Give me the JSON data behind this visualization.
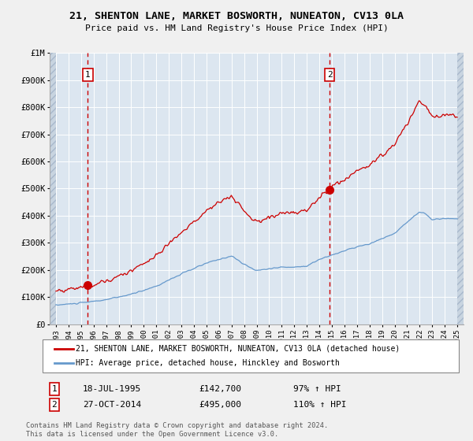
{
  "title": "21, SHENTON LANE, MARKET BOSWORTH, NUNEATON, CV13 0LA",
  "subtitle": "Price paid vs. HM Land Registry's House Price Index (HPI)",
  "legend_line1": "21, SHENTON LANE, MARKET BOSWORTH, NUNEATON, CV13 0LA (detached house)",
  "legend_line2": "HPI: Average price, detached house, Hinckley and Bosworth",
  "footnote": "Contains HM Land Registry data © Crown copyright and database right 2024.\nThis data is licensed under the Open Government Licence v3.0.",
  "sale1_date": "18-JUL-1995",
  "sale1_price": "£142,700",
  "sale1_hpi": "97% ↑ HPI",
  "sale1_x": 1995.54,
  "sale1_y": 142700,
  "sale2_date": "27-OCT-2014",
  "sale2_price": "£495,000",
  "sale2_hpi": "110% ↑ HPI",
  "sale2_x": 2014.82,
  "sale2_y": 495000,
  "red_line_color": "#cc0000",
  "blue_line_color": "#6699cc",
  "bg_color": "#dce6f0",
  "hatch_facecolor": "#c8d4e0",
  "hatch_edgecolor": "#a8b8cc",
  "grid_color": "#ffffff",
  "sale_marker_color": "#cc0000",
  "dashed_line_color": "#cc0000",
  "fig_bg_color": "#f0f0f0",
  "ylim": [
    0,
    1000000
  ],
  "yticks": [
    0,
    100000,
    200000,
    300000,
    400000,
    500000,
    600000,
    700000,
    800000,
    900000,
    1000000
  ],
  "ytick_labels": [
    "£0",
    "£100K",
    "£200K",
    "£300K",
    "£400K",
    "£500K",
    "£600K",
    "£700K",
    "£800K",
    "£900K",
    "£1M"
  ],
  "xmin": 1992.5,
  "xmax": 2025.5,
  "xticks": [
    1993,
    1994,
    1995,
    1996,
    1997,
    1998,
    1999,
    2000,
    2001,
    2002,
    2003,
    2004,
    2005,
    2006,
    2007,
    2008,
    2009,
    2010,
    2011,
    2012,
    2013,
    2014,
    2015,
    2016,
    2017,
    2018,
    2019,
    2020,
    2021,
    2022,
    2023,
    2024,
    2025
  ]
}
